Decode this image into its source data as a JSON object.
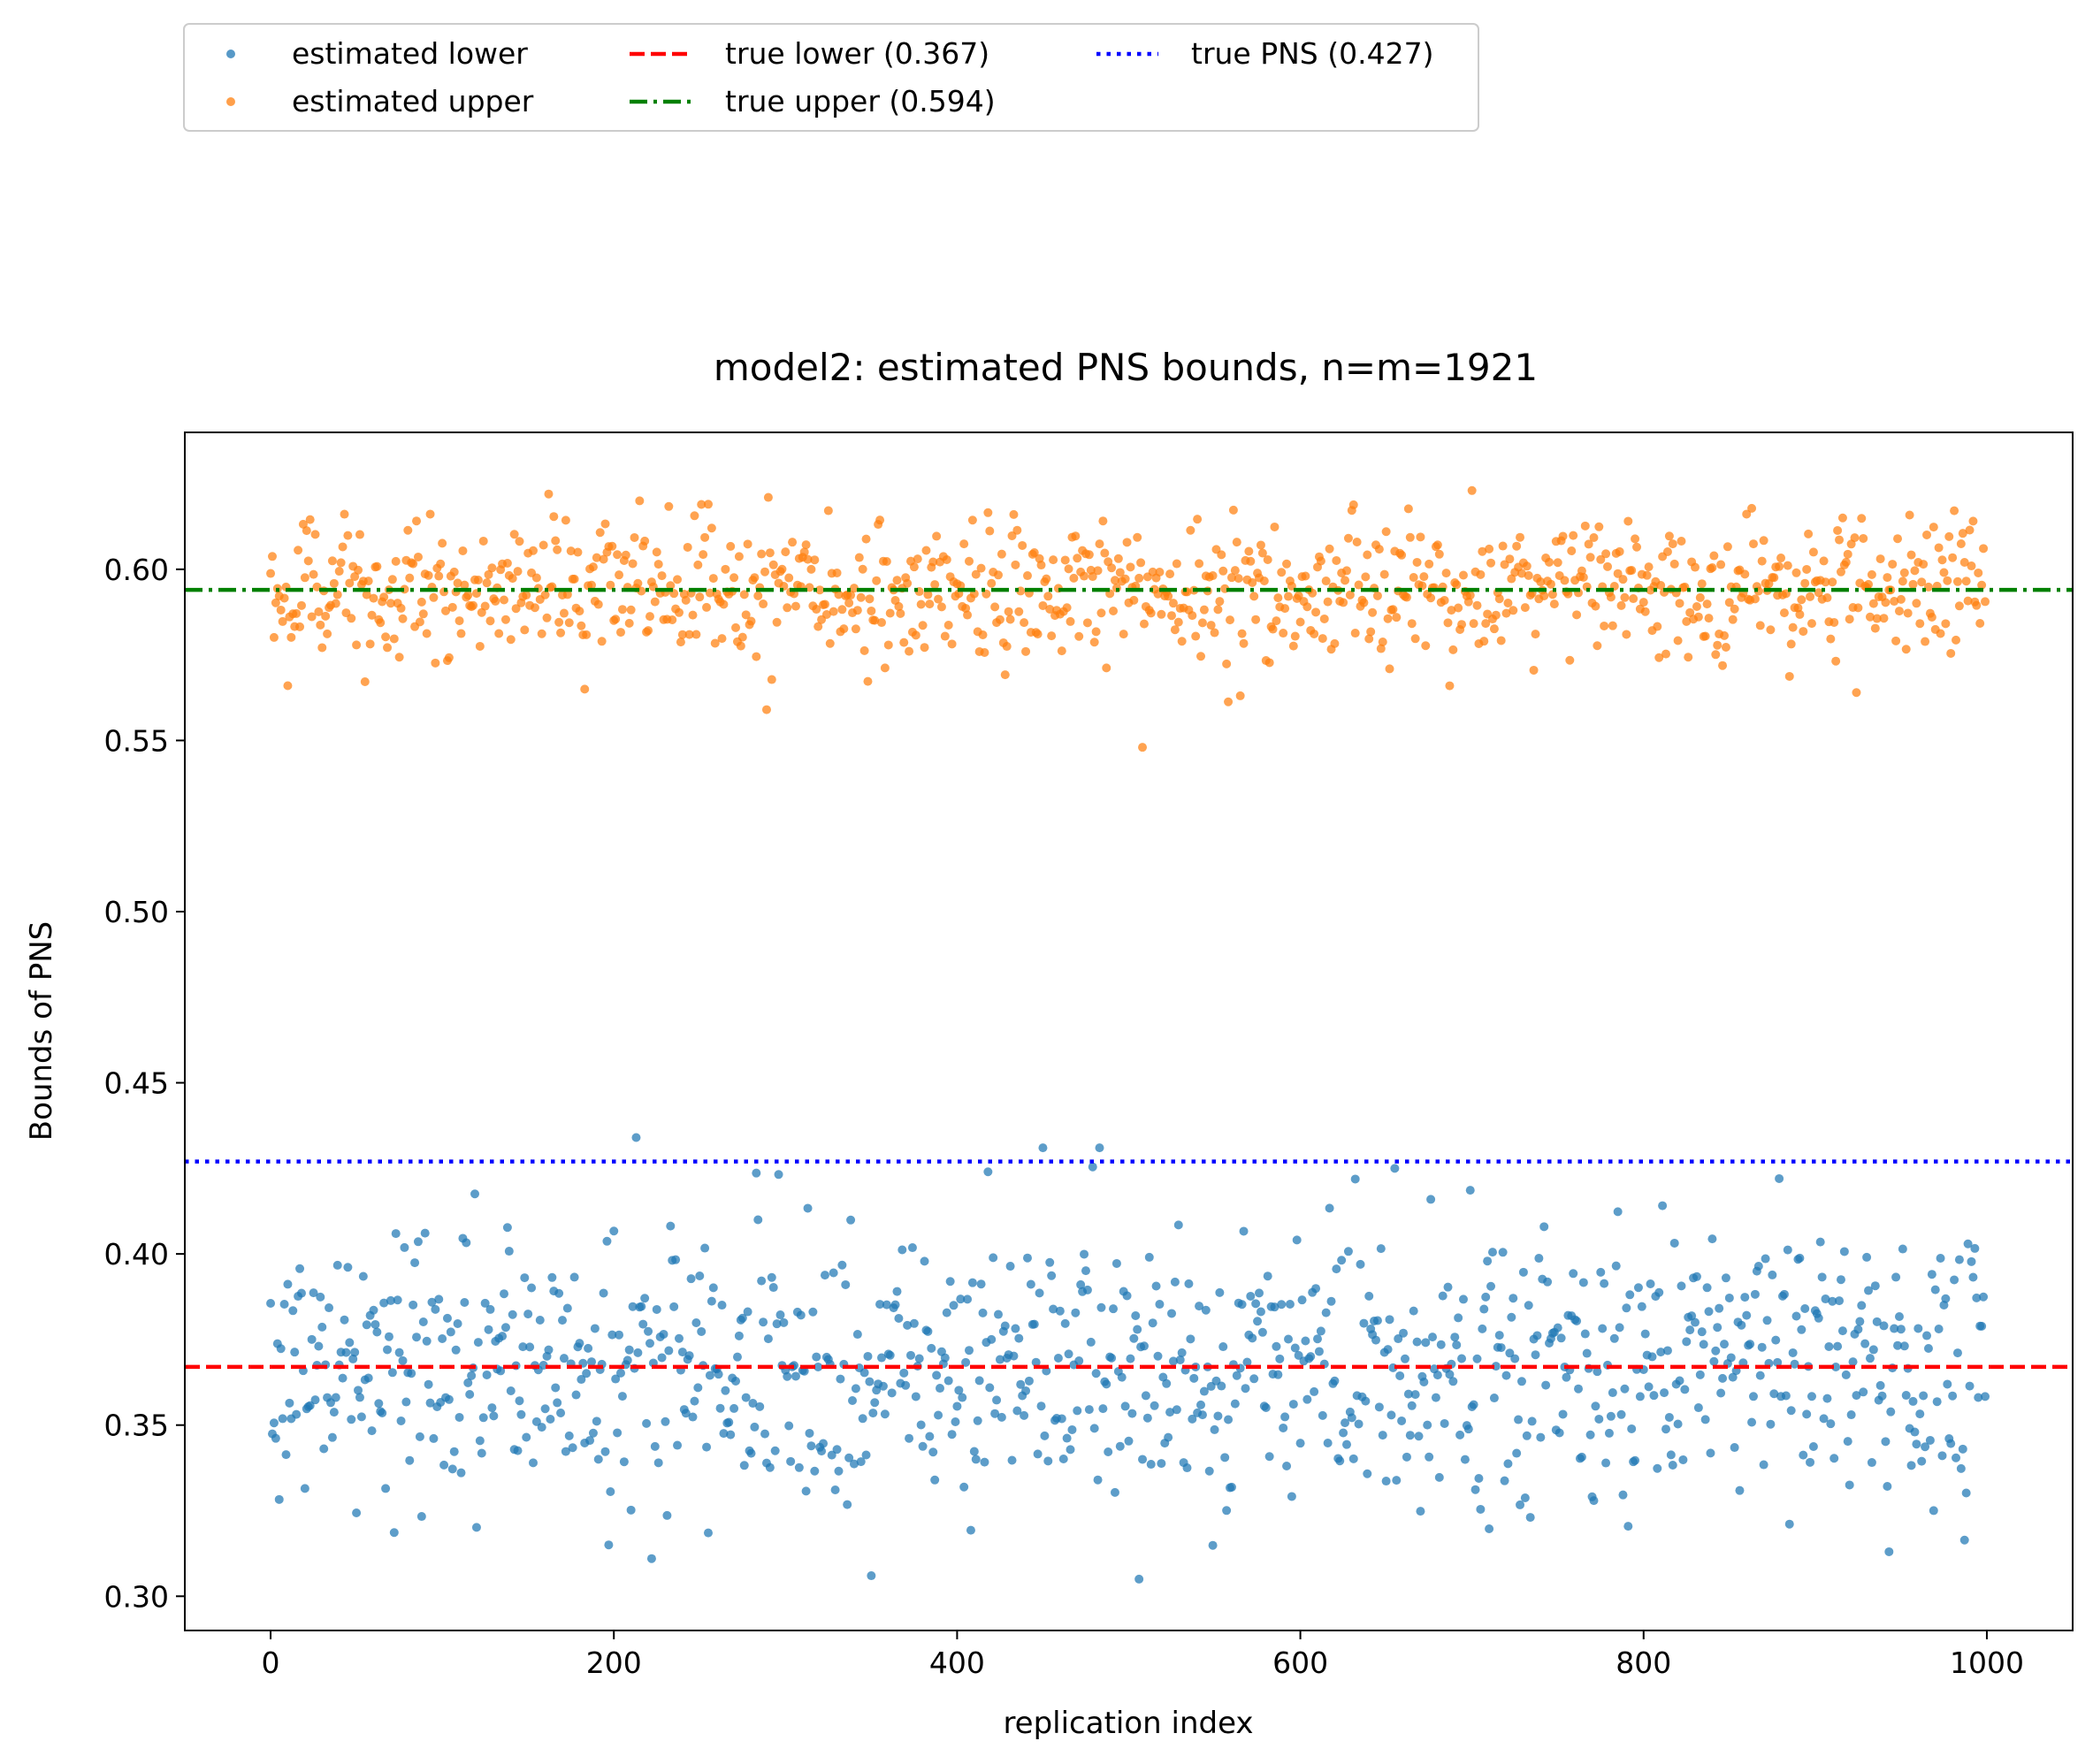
{
  "chart_data": {
    "type": "scatter",
    "title": "model2: estimated PNS bounds, n=m=1921",
    "xlabel": "replication index",
    "ylabel": "Bounds of PNS",
    "xlim": [
      -50,
      1050
    ],
    "ylim": [
      0.29,
      0.64
    ],
    "xticks": [
      0,
      200,
      400,
      600,
      800,
      1000
    ],
    "xtick_labels": [
      "0",
      "200",
      "400",
      "600",
      "800",
      "1000"
    ],
    "yticks": [
      0.3,
      0.35,
      0.4,
      0.45,
      0.5,
      0.55,
      0.6
    ],
    "ytick_labels": [
      "0.30",
      "0.35",
      "0.40",
      "0.45",
      "0.50",
      "0.55",
      "0.60"
    ],
    "grid": false,
    "legend_position": "above-left",
    "n_replications": 1000,
    "series": [
      {
        "name": "estimated lower",
        "kind": "scatter",
        "color": "#1f77b4",
        "center": 0.367,
        "spread": 0.02,
        "min": 0.305,
        "max": 0.434,
        "notable_points": [
          {
            "x": 213,
            "y": 0.434
          },
          {
            "x": 450,
            "y": 0.431
          },
          {
            "x": 483,
            "y": 0.431
          },
          {
            "x": 655,
            "y": 0.425
          },
          {
            "x": 418,
            "y": 0.424
          },
          {
            "x": 879,
            "y": 0.422
          },
          {
            "x": 350,
            "y": 0.306
          },
          {
            "x": 506,
            "y": 0.305
          },
          {
            "x": 222,
            "y": 0.311
          },
          {
            "x": 943,
            "y": 0.313
          },
          {
            "x": 197,
            "y": 0.315
          }
        ]
      },
      {
        "name": "estimated upper",
        "kind": "scatter",
        "color": "#ff7f0e",
        "center": 0.594,
        "spread": 0.01,
        "min": 0.548,
        "max": 0.623,
        "notable_points": [
          {
            "x": 700,
            "y": 0.623
          },
          {
            "x": 162,
            "y": 0.622
          },
          {
            "x": 290,
            "y": 0.621
          },
          {
            "x": 215,
            "y": 0.62
          },
          {
            "x": 255,
            "y": 0.619
          },
          {
            "x": 508,
            "y": 0.548
          },
          {
            "x": 289,
            "y": 0.559
          },
          {
            "x": 924,
            "y": 0.564
          },
          {
            "x": 10,
            "y": 0.566
          },
          {
            "x": 183,
            "y": 0.565
          }
        ]
      },
      {
        "name": "true lower (0.367)",
        "kind": "hline",
        "value": 0.367,
        "color": "#ff0000",
        "style": "dashed"
      },
      {
        "name": "true upper (0.594)",
        "kind": "hline",
        "value": 0.594,
        "color": "#008000",
        "style": "dashdot"
      },
      {
        "name": "true PNS (0.427)",
        "kind": "hline",
        "value": 0.427,
        "color": "#0000ff",
        "style": "dotted"
      }
    ]
  }
}
